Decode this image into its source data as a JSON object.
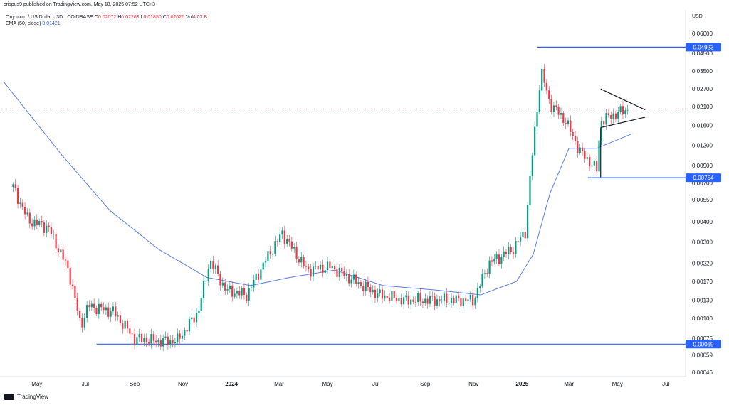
{
  "header": {
    "published": "crispus9 published on TradingView.com, May 18, 2025 07:52 UTC+3"
  },
  "legend": {
    "symbol": "Onyxcoin / US Dollar · 3D · COINBASE",
    "o_label": "O",
    "o": "0.02072",
    "h_label": "H",
    "h": "0.02263",
    "l_label": "L",
    "l": "0.01850",
    "c_label": "C",
    "c": "0.02026",
    "vol_label": "Vol",
    "vol": "4.03 B",
    "ema_label": "EMA (50, close)",
    "ema": "0.01421"
  },
  "currency": "USD",
  "brand": "TradingView",
  "colors": {
    "up": "#089981",
    "down": "#f23645",
    "ema": "#5b7de6",
    "line": "#2962ff",
    "current": "#f23645"
  },
  "chart_data": {
    "type": "candlestick",
    "y_scale": "log",
    "y_ticks": [
      "0.06000",
      "0.04500",
      "0.03500",
      "0.02700",
      "0.02100",
      "0.01600",
      "0.01200",
      "0.00900",
      "0.00700",
      "0.00550",
      "0.00400",
      "0.00300",
      "0.00220",
      "0.00170",
      "0.00130",
      "0.00100",
      "0.00075",
      "0.00059",
      "0.00046"
    ],
    "x_ticks": [
      "May",
      "Jul",
      "Sep",
      "Nov",
      "2024",
      "Mar",
      "May",
      "Jul",
      "Sep",
      "Nov",
      "2025",
      "Mar",
      "May",
      "Jul"
    ],
    "x_ticks_bold": [
      "2024",
      "2025"
    ],
    "horizontal_levels": [
      {
        "value": 0.04923,
        "label": "0.04923"
      },
      {
        "value": 0.00754,
        "label": "0.00754"
      },
      {
        "value": 0.00069,
        "label": "0.00069"
      }
    ],
    "current_price": 0.02026,
    "ohlc_close_path": [
      {
        "date": "2023-04-01",
        "close": 0.0066
      },
      {
        "date": "2023-04-20",
        "close": 0.0041
      },
      {
        "date": "2023-05-15",
        "close": 0.0037
      },
      {
        "date": "2023-06-10",
        "close": 0.002
      },
      {
        "date": "2023-06-25",
        "close": 0.0009
      },
      {
        "date": "2023-07-05",
        "close": 0.0012
      },
      {
        "date": "2023-08-05",
        "close": 0.0011
      },
      {
        "date": "2023-09-01",
        "close": 0.00075
      },
      {
        "date": "2023-10-01",
        "close": 0.00072
      },
      {
        "date": "2023-10-25",
        "close": 0.00073
      },
      {
        "date": "2023-11-20",
        "close": 0.0011
      },
      {
        "date": "2023-12-05",
        "close": 0.0023
      },
      {
        "date": "2023-12-25",
        "close": 0.0015
      },
      {
        "date": "2024-01-20",
        "close": 0.0014
      },
      {
        "date": "2024-02-15",
        "close": 0.0024
      },
      {
        "date": "2024-03-05",
        "close": 0.0034
      },
      {
        "date": "2024-04-05",
        "close": 0.002
      },
      {
        "date": "2024-05-05",
        "close": 0.0021
      },
      {
        "date": "2024-06-05",
        "close": 0.0017
      },
      {
        "date": "2024-07-05",
        "close": 0.0014
      },
      {
        "date": "2024-08-05",
        "close": 0.0013
      },
      {
        "date": "2024-09-05",
        "close": 0.0013
      },
      {
        "date": "2024-10-05",
        "close": 0.0013
      },
      {
        "date": "2024-11-01",
        "close": 0.0013
      },
      {
        "date": "2024-11-20",
        "close": 0.0022
      },
      {
        "date": "2024-12-20",
        "close": 0.0027
      },
      {
        "date": "2025-01-05",
        "close": 0.0035
      },
      {
        "date": "2025-01-15",
        "close": 0.012
      },
      {
        "date": "2025-01-25",
        "close": 0.035
      },
      {
        "date": "2025-02-05",
        "close": 0.022
      },
      {
        "date": "2025-02-25",
        "close": 0.017
      },
      {
        "date": "2025-03-15",
        "close": 0.011
      },
      {
        "date": "2025-04-05",
        "close": 0.0085
      },
      {
        "date": "2025-04-10",
        "close": 0.017
      },
      {
        "date": "2025-04-25",
        "close": 0.0185
      },
      {
        "date": "2025-05-15",
        "close": 0.0203
      }
    ],
    "ema_path": [
      {
        "date": "2023-03-20",
        "value": 0.03
      },
      {
        "date": "2023-06-01",
        "value": 0.0105
      },
      {
        "date": "2023-08-01",
        "value": 0.0047
      },
      {
        "date": "2023-10-01",
        "value": 0.0027
      },
      {
        "date": "2023-12-01",
        "value": 0.0018
      },
      {
        "date": "2024-01-25",
        "value": 0.0016
      },
      {
        "date": "2024-03-15",
        "value": 0.0018
      },
      {
        "date": "2024-05-10",
        "value": 0.002
      },
      {
        "date": "2024-07-10",
        "value": 0.0016
      },
      {
        "date": "2024-09-15",
        "value": 0.0015
      },
      {
        "date": "2024-11-10",
        "value": 0.0014
      },
      {
        "date": "2024-12-25",
        "value": 0.0017
      },
      {
        "date": "2025-01-15",
        "value": 0.0025
      },
      {
        "date": "2025-02-05",
        "value": 0.006
      },
      {
        "date": "2025-03-01",
        "value": 0.0115
      },
      {
        "date": "2025-04-05",
        "value": 0.0115
      },
      {
        "date": "2025-05-20",
        "value": 0.0142
      }
    ],
    "triangle": {
      "upper": [
        {
          "date": "2025-04-10",
          "value": 0.027
        },
        {
          "date": "2025-06-05",
          "value": 0.02
        }
      ],
      "lower": [
        {
          "date": "2025-04-10",
          "value": 0.0155
        },
        {
          "date": "2025-06-05",
          "value": 0.018
        }
      ]
    },
    "flagpole": [
      {
        "date": "2025-04-10",
        "value": 0.0076
      },
      {
        "date": "2025-04-10",
        "value": 0.0155
      }
    ]
  }
}
